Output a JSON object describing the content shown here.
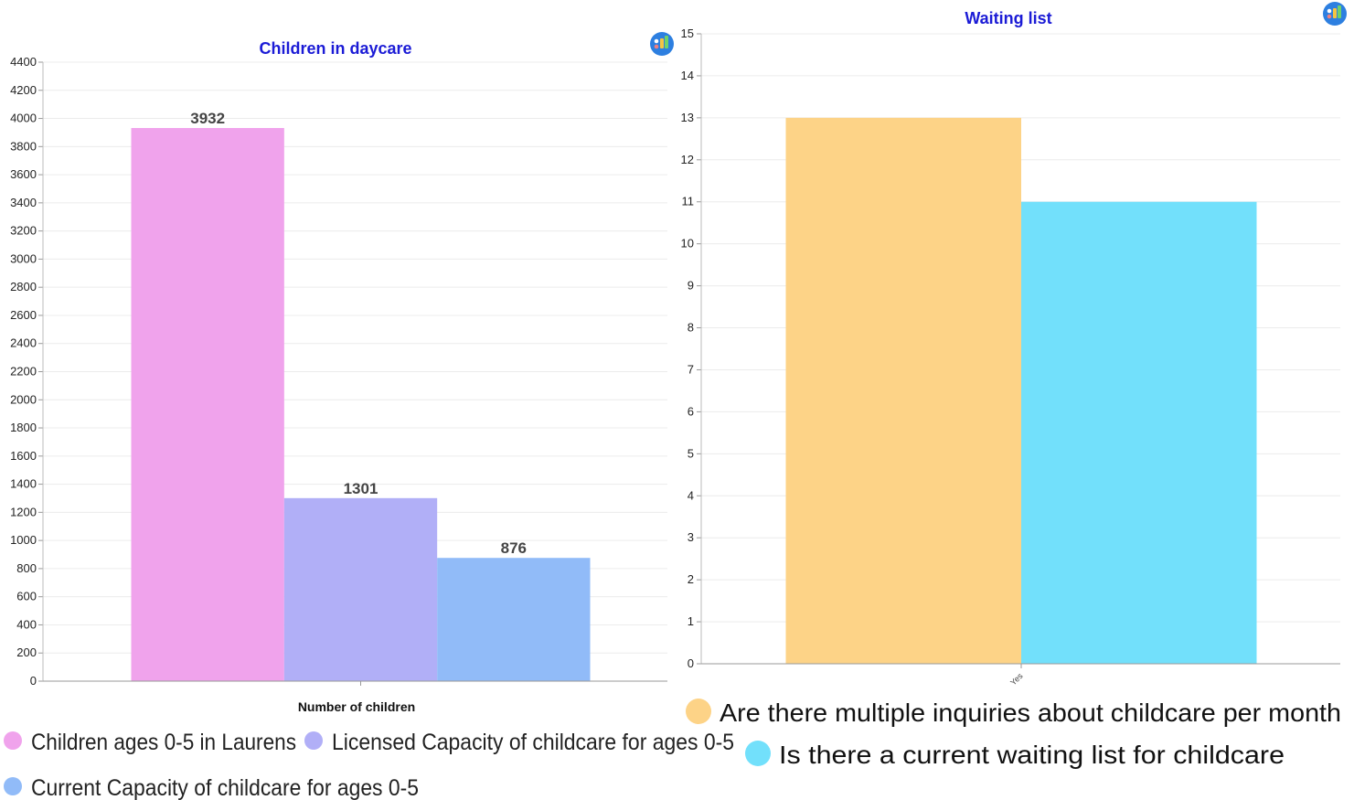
{
  "chart_data": [
    {
      "type": "bar",
      "title": "Children in daycare",
      "xlabel": "Number of children",
      "ylabel": "",
      "ylim": [
        0,
        4400
      ],
      "ytick_step": 200,
      "grid": true,
      "legend_placement": "bottom",
      "categories": [
        "Number of children"
      ],
      "series": [
        {
          "name": "Children ages 0-5 in Laurens",
          "values": [
            3932
          ],
          "color": "#f0a3ec"
        },
        {
          "name": "Licensed Capacity of childcare for ages 0-5",
          "values": [
            1301
          ],
          "color": "#b1aff7"
        },
        {
          "name": "Current Capacity of childcare for ages 0-5",
          "values": [
            876
          ],
          "color": "#91bbf8"
        }
      ],
      "data_labels": true
    },
    {
      "type": "bar",
      "title": "Waiting list",
      "xlabel": "",
      "ylabel": "",
      "ylim": [
        0,
        15
      ],
      "ytick_step": 1,
      "grid": true,
      "legend_placement": "bottom",
      "categories": [
        "Yes"
      ],
      "series": [
        {
          "name": "Are there multiple inquiries about childcare per month",
          "values": [
            13
          ],
          "color": "#fdd387"
        },
        {
          "name": "Is there a current waiting list for childcare",
          "values": [
            11
          ],
          "color": "#72e0fb"
        }
      ],
      "data_labels": false
    }
  ],
  "icons": {
    "left_chart_icon": "chart-badge-icon",
    "right_chart_icon": "chart-badge-icon"
  }
}
